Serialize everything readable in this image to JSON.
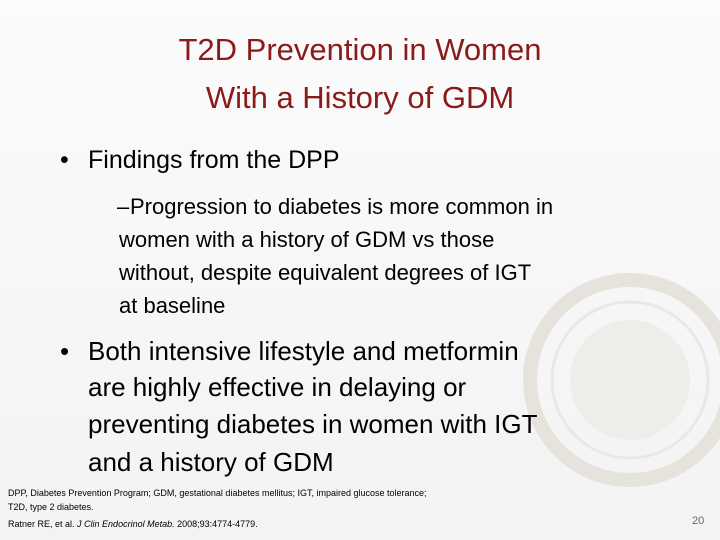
{
  "title_lines": [
    "T2D Prevention in Women",
    "With a History of GDM"
  ],
  "bullets": [
    {
      "marker": "•",
      "lines": [
        "Findings from the DPP"
      ],
      "sub_bullets": [
        {
          "marker": "–",
          "lines": [
            "Progression to diabetes is more common in",
            "women with a history of GDM vs those",
            "without, despite equivalent degrees of IGT",
            "at baseline"
          ]
        }
      ]
    },
    {
      "marker": "•",
      "lines": [
        "Both intensive lifestyle and metformin",
        "are highly effective in delaying or",
        "preventing diabetes in women with IGT",
        "and a history of GDM"
      ]
    }
  ],
  "footnote": {
    "lines": [
      "DPP, Diabetes Prevention Program; GDM, gestational diabetes mellitus; IGT, impaired glucose tolerance;",
      "T2D, type 2 diabetes."
    ]
  },
  "reference": {
    "authors": "Ratner RE, et al.",
    "journal": "J Clin Endocrinol Metab.",
    "citation": "2008;93:4774-4779."
  },
  "page_number": "20"
}
